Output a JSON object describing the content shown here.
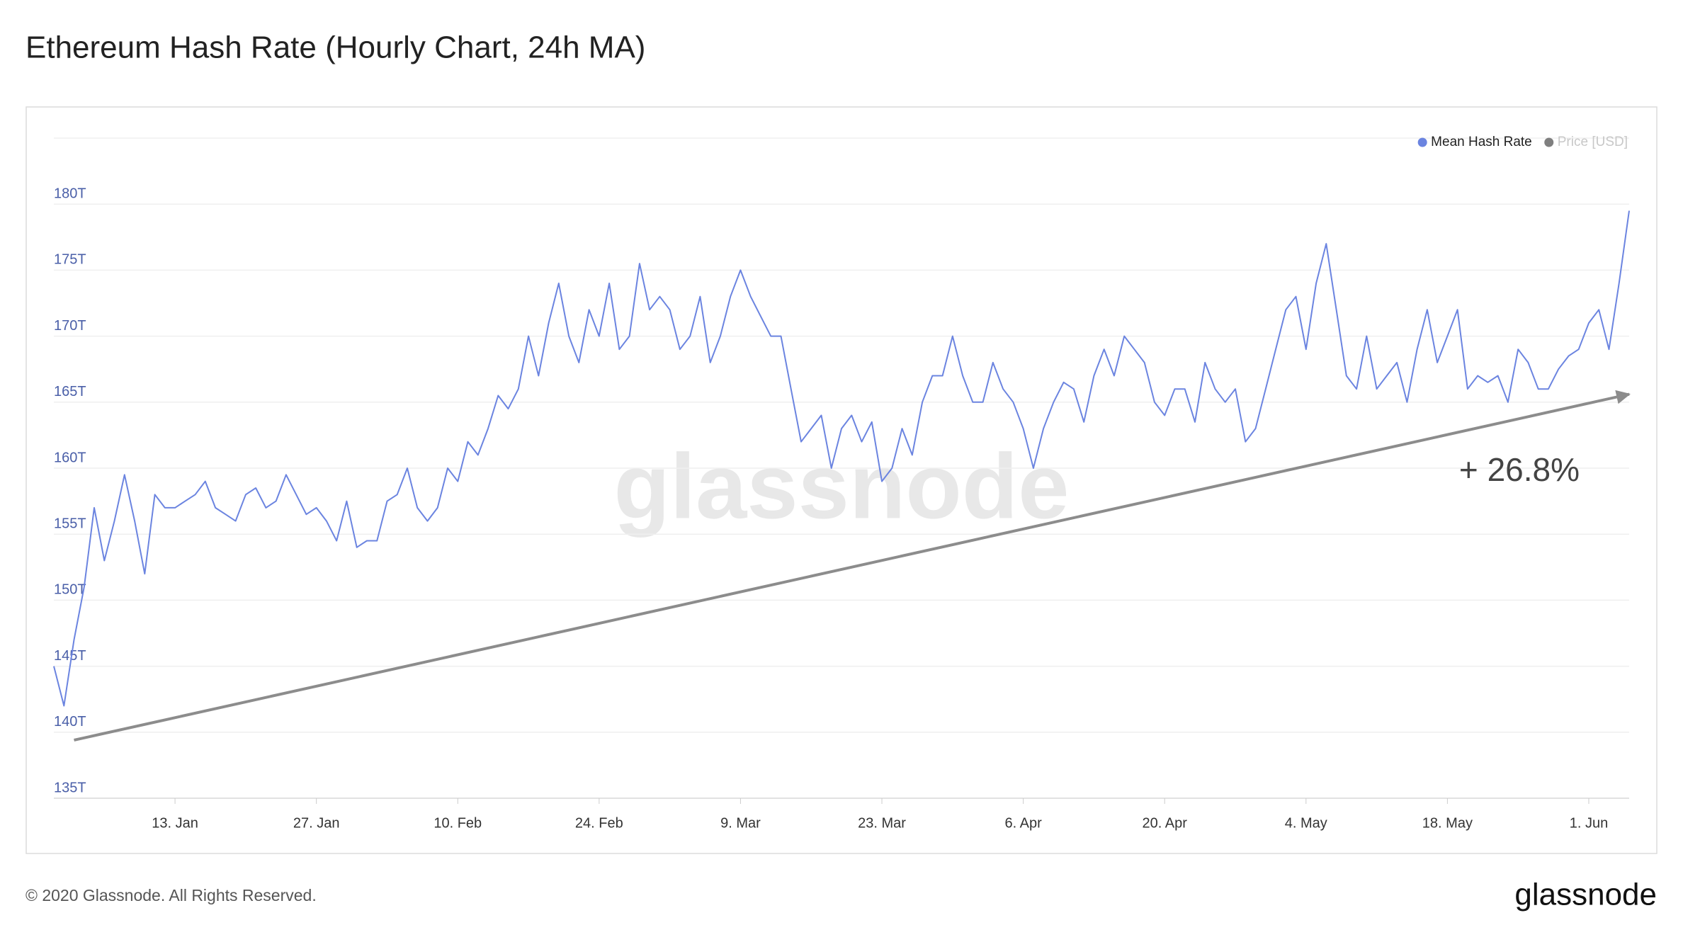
{
  "chart_data": {
    "type": "line",
    "title": "Ethereum Hash Rate (Hourly Chart, 24h MA)",
    "categories": [
      "1. Jan",
      "2. Jan",
      "3. Jan",
      "4. Jan",
      "5. Jan",
      "6. Jan",
      "7. Jan",
      "8. Jan",
      "9. Jan",
      "10. Jan",
      "11. Jan",
      "12. Jan",
      "13. Jan",
      "14. Jan",
      "15. Jan",
      "16. Jan",
      "17. Jan",
      "18. Jan",
      "19. Jan",
      "20. Jan",
      "21. Jan",
      "22. Jan",
      "23. Jan",
      "24. Jan",
      "25. Jan",
      "26. Jan",
      "27. Jan",
      "28. Jan",
      "29. Jan",
      "30. Jan",
      "31. Jan",
      "1. Feb",
      "2. Feb",
      "3. Feb",
      "4. Feb",
      "5. Feb",
      "6. Feb",
      "7. Feb",
      "8. Feb",
      "9. Feb",
      "10. Feb",
      "11. Feb",
      "12. Feb",
      "13. Feb",
      "14. Feb",
      "15. Feb",
      "16. Feb",
      "17. Feb",
      "18. Feb",
      "19. Feb",
      "20. Feb",
      "21. Feb",
      "22. Feb",
      "23. Feb",
      "24. Feb",
      "25. Feb",
      "26. Feb",
      "27. Feb",
      "28. Feb",
      "29. Feb",
      "1. Mar",
      "2. Mar",
      "3. Mar",
      "4. Mar",
      "5. Mar",
      "6. Mar",
      "7. Mar",
      "8. Mar",
      "9. Mar",
      "10. Mar",
      "11. Mar",
      "12. Mar",
      "13. Mar",
      "14. Mar",
      "15. Mar",
      "16. Mar",
      "17. Mar",
      "18. Mar",
      "19. Mar",
      "20. Mar",
      "21. Mar",
      "22. Mar",
      "23. Mar",
      "24. Mar",
      "25. Mar",
      "26. Mar",
      "27. Mar",
      "28. Mar",
      "29. Mar",
      "30. Mar",
      "31. Mar",
      "1. Apr",
      "2. Apr",
      "3. Apr",
      "4. Apr",
      "5. Apr",
      "6. Apr",
      "7. Apr",
      "8. Apr",
      "9. Apr",
      "10. Apr",
      "11. Apr",
      "12. Apr",
      "13. Apr",
      "14. Apr",
      "15. Apr",
      "16. Apr",
      "17. Apr",
      "18. Apr",
      "19. Apr",
      "20. Apr",
      "21. Apr",
      "22. Apr",
      "23. Apr",
      "24. Apr",
      "25. Apr",
      "26. Apr",
      "27. Apr",
      "28. Apr",
      "29. Apr",
      "30. Apr",
      "1. May",
      "2. May",
      "3. May",
      "4. May",
      "5. May",
      "6. May",
      "7. May",
      "8. May",
      "9. May",
      "10. May",
      "11. May",
      "12. May",
      "13. May",
      "14. May",
      "15. May",
      "16. May",
      "17. May",
      "18. May",
      "19. May",
      "20. May",
      "21. May",
      "22. May",
      "23. May",
      "24. May",
      "25. May",
      "26. May",
      "27. May",
      "28. May",
      "29. May",
      "30. May",
      "31. May",
      "1. Jun",
      "2. Jun",
      "3. Jun",
      "4. Jun",
      "5. Jun"
    ],
    "series": [
      {
        "name": "Mean Hash Rate",
        "color": "#6b84e0",
        "values": [
          145,
          142,
          147,
          151,
          157,
          153,
          156,
          159.5,
          156,
          152,
          158,
          157,
          157,
          157.5,
          158,
          159,
          157,
          156.5,
          156,
          158,
          158.5,
          157,
          157.5,
          159.5,
          158,
          156.5,
          157,
          156,
          154.5,
          157.5,
          154,
          154.5,
          154.5,
          157.5,
          158,
          160,
          157,
          156,
          157,
          160,
          159,
          162,
          161,
          163,
          165.5,
          164.5,
          166,
          170,
          167,
          171,
          174,
          170,
          168,
          172,
          170,
          174,
          169,
          170,
          175.5,
          172,
          173,
          172,
          169,
          170,
          173,
          168,
          170,
          173,
          175,
          173,
          171.5,
          170,
          170,
          166,
          162,
          163,
          164,
          160,
          163,
          164,
          162,
          163.5,
          159,
          160,
          163,
          161,
          165,
          167,
          167,
          170,
          167,
          165,
          165,
          168,
          166,
          165,
          163,
          160,
          163,
          165,
          166.5,
          166,
          163.5,
          167,
          169,
          167,
          170,
          169,
          168,
          165,
          164,
          166,
          166,
          163.5,
          168,
          166,
          165,
          166,
          162,
          163,
          166,
          169,
          172,
          173,
          169,
          174,
          177,
          172,
          167,
          166,
          170,
          166,
          167,
          168,
          165,
          169,
          172,
          168,
          170,
          172,
          166,
          167,
          166.5,
          167,
          165,
          169,
          168,
          166,
          166,
          167.5,
          168.5,
          169,
          171,
          172,
          169,
          174,
          179.5
        ]
      }
    ],
    "hidden_series": [
      {
        "name": "Price [USD]",
        "color": "#7f7f7f"
      }
    ],
    "legend": "top-right",
    "ylim": [
      135,
      185
    ],
    "yticks": [
      {
        "value": 135,
        "label": "135T"
      },
      {
        "value": 140,
        "label": "140T"
      },
      {
        "value": 145,
        "label": "145T"
      },
      {
        "value": 150,
        "label": "150T"
      },
      {
        "value": 155,
        "label": "155T"
      },
      {
        "value": 160,
        "label": "160T"
      },
      {
        "value": 165,
        "label": "165T"
      },
      {
        "value": 170,
        "label": "170T"
      },
      {
        "value": 175,
        "label": "175T"
      },
      {
        "value": 180,
        "label": "180T"
      }
    ],
    "xticks": [
      "13. Jan",
      "27. Jan",
      "10. Feb",
      "24. Feb",
      "9. Mar",
      "23. Mar",
      "6. Apr",
      "20. Apr",
      "4. May",
      "18. May",
      "1. Jun"
    ],
    "grid": true,
    "annotation": {
      "label": "+ 26.8%",
      "start": {
        "x": "3. Jan",
        "y": 139.4
      },
      "end": {
        "x": "5. Jun",
        "y": 165.6
      },
      "color": "#8c8c8c"
    }
  },
  "watermark": "glassnode",
  "footer": {
    "copyright": "© 2020 Glassnode. All Rights Reserved.",
    "logo": "glassnode"
  }
}
